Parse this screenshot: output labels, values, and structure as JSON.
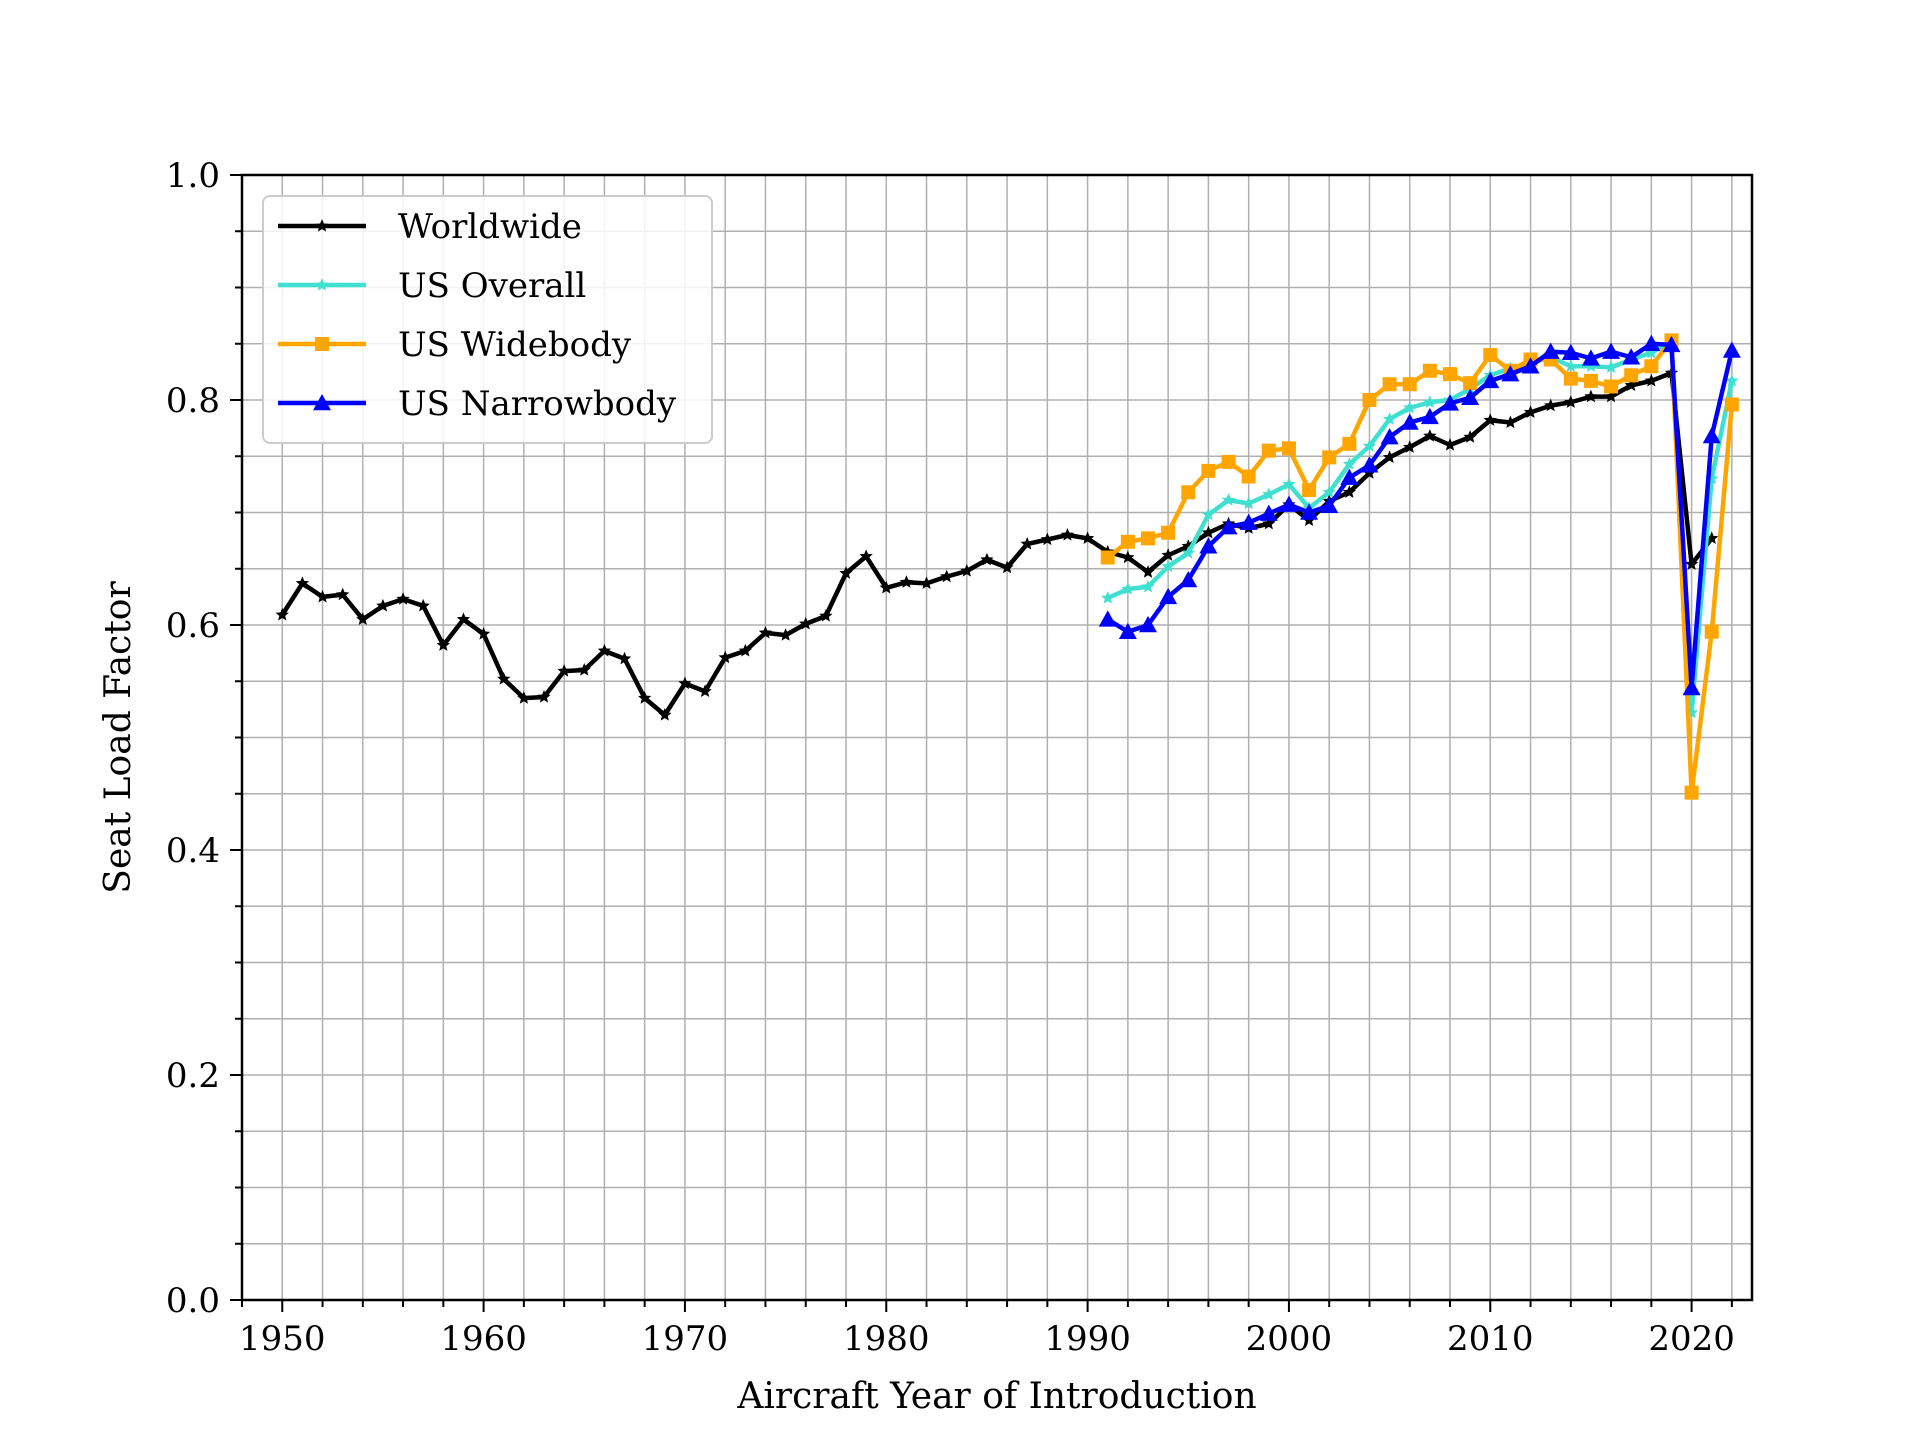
{
  "chart_data": {
    "type": "line",
    "xlabel": "Aircraft Year of Introduction",
    "ylabel": "Seat Load Factor",
    "xlim": [
      1948,
      2023
    ],
    "ylim": [
      0.0,
      1.0
    ],
    "xticks": [
      1950,
      1960,
      1970,
      1980,
      1990,
      2000,
      2010,
      2020
    ],
    "yticks": [
      0.0,
      0.2,
      0.4,
      0.6,
      0.8,
      1.0
    ],
    "xtick_labels": [
      "1950",
      "1960",
      "1970",
      "1980",
      "1990",
      "2000",
      "2010",
      "2020"
    ],
    "ytick_labels": [
      "0.0",
      "0.2",
      "0.4",
      "0.6",
      "0.8",
      "1.0"
    ],
    "x_minor_step": 2,
    "y_minor_step": 0.05,
    "grid": true,
    "legend_position": "top-left",
    "series": [
      {
        "name": "Worldwide",
        "color": "#000000",
        "marker": "star",
        "x": [
          1950,
          1951,
          1952,
          1953,
          1954,
          1955,
          1956,
          1957,
          1958,
          1959,
          1960,
          1961,
          1962,
          1963,
          1964,
          1965,
          1966,
          1967,
          1968,
          1969,
          1970,
          1971,
          1972,
          1973,
          1974,
          1975,
          1976,
          1977,
          1978,
          1979,
          1980,
          1981,
          1982,
          1983,
          1984,
          1985,
          1986,
          1987,
          1988,
          1989,
          1990,
          1991,
          1992,
          1993,
          1994,
          1995,
          1996,
          1997,
          1998,
          1999,
          2000,
          2001,
          2002,
          2003,
          2004,
          2005,
          2006,
          2007,
          2008,
          2009,
          2010,
          2011,
          2012,
          2013,
          2014,
          2015,
          2016,
          2017,
          2018,
          2019,
          2020,
          2021
        ],
        "values": [
          0.609,
          0.637,
          0.625,
          0.627,
          0.605,
          0.617,
          0.623,
          0.617,
          0.582,
          0.605,
          0.592,
          0.552,
          0.535,
          0.536,
          0.559,
          0.56,
          0.577,
          0.57,
          0.535,
          0.52,
          0.548,
          0.541,
          0.571,
          0.577,
          0.593,
          0.591,
          0.601,
          0.608,
          0.646,
          0.661,
          0.633,
          0.638,
          0.637,
          0.643,
          0.648,
          0.658,
          0.651,
          0.672,
          0.676,
          0.68,
          0.677,
          0.665,
          0.66,
          0.647,
          0.662,
          0.67,
          0.682,
          0.69,
          0.686,
          0.69,
          0.707,
          0.693,
          0.71,
          0.718,
          0.735,
          0.749,
          0.758,
          0.768,
          0.76,
          0.767,
          0.782,
          0.78,
          0.789,
          0.795,
          0.798,
          0.803,
          0.803,
          0.813,
          0.817,
          0.824,
          0.654,
          0.677
        ]
      },
      {
        "name": "US Overall",
        "color": "#40e0d0",
        "marker": "star",
        "x": [
          1991,
          1992,
          1993,
          1994,
          1995,
          1996,
          1997,
          1998,
          1999,
          2000,
          2001,
          2002,
          2003,
          2004,
          2005,
          2006,
          2007,
          2008,
          2009,
          2010,
          2011,
          2012,
          2013,
          2014,
          2015,
          2016,
          2017,
          2018,
          2019,
          2020,
          2021,
          2022
        ],
        "values": [
          0.624,
          0.632,
          0.634,
          0.652,
          0.664,
          0.698,
          0.711,
          0.708,
          0.716,
          0.725,
          0.704,
          0.718,
          0.743,
          0.759,
          0.783,
          0.793,
          0.798,
          0.8,
          0.81,
          0.822,
          0.828,
          0.833,
          0.838,
          0.83,
          0.83,
          0.829,
          0.836,
          0.842,
          0.852,
          0.522,
          0.73,
          0.817
        ]
      },
      {
        "name": "US Widebody",
        "color": "#ffa500",
        "marker": "square",
        "x": [
          1991,
          1992,
          1993,
          1994,
          1995,
          1996,
          1997,
          1998,
          1999,
          2000,
          2001,
          2002,
          2003,
          2004,
          2005,
          2006,
          2007,
          2008,
          2009,
          2010,
          2011,
          2012,
          2013,
          2014,
          2015,
          2016,
          2017,
          2018,
          2019,
          2020,
          2021,
          2022
        ],
        "values": [
          0.66,
          0.674,
          0.677,
          0.682,
          0.718,
          0.737,
          0.745,
          0.732,
          0.755,
          0.757,
          0.72,
          0.749,
          0.761,
          0.8,
          0.814,
          0.814,
          0.826,
          0.823,
          0.815,
          0.84,
          0.826,
          0.836,
          0.836,
          0.819,
          0.817,
          0.812,
          0.822,
          0.83,
          0.853,
          0.451,
          0.594,
          0.796
        ]
      },
      {
        "name": "US Narrowbody",
        "color": "#0000ff",
        "marker": "triangle",
        "x": [
          1991,
          1992,
          1993,
          1994,
          1995,
          1996,
          1997,
          1998,
          1999,
          2000,
          2001,
          2002,
          2003,
          2004,
          2005,
          2006,
          2007,
          2008,
          2009,
          2010,
          2011,
          2012,
          2013,
          2014,
          2015,
          2016,
          2017,
          2018,
          2019,
          2020,
          2021,
          2022
        ],
        "values": [
          0.605,
          0.594,
          0.6,
          0.625,
          0.64,
          0.67,
          0.687,
          0.691,
          0.699,
          0.707,
          0.7,
          0.706,
          0.731,
          0.742,
          0.767,
          0.78,
          0.785,
          0.797,
          0.802,
          0.817,
          0.823,
          0.83,
          0.843,
          0.842,
          0.837,
          0.843,
          0.838,
          0.85,
          0.849,
          0.544,
          0.768,
          0.844
        ]
      }
    ]
  }
}
